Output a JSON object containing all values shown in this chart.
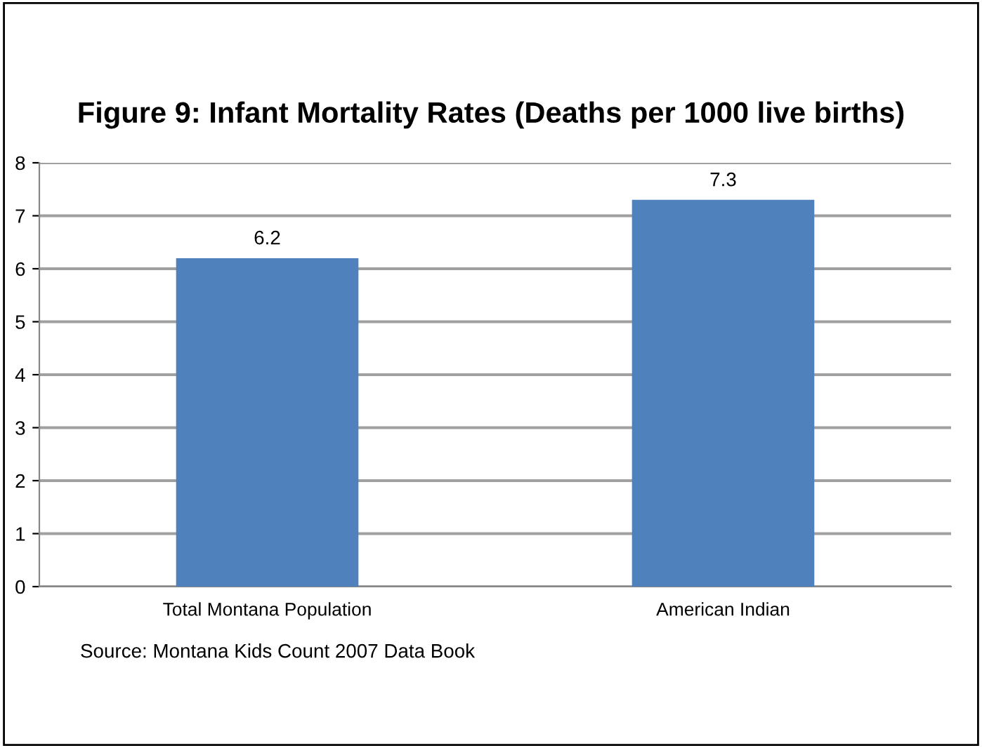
{
  "chart_data": {
    "type": "bar",
    "title": "Figure 9: Infant Mortality Rates (Deaths per 1000 live births)",
    "categories": [
      "Total Montana Population",
      "American Indian"
    ],
    "values": [
      6.2,
      7.3
    ],
    "color": "#4f81bd",
    "data_labels": true,
    "ylim": [
      0,
      8
    ],
    "yticks": [
      0,
      1,
      2,
      3,
      4,
      5,
      6,
      7,
      8
    ],
    "grid": "y",
    "legend": false,
    "annotations": [
      "Source: Montana Kids Count 2007 Data Book"
    ]
  }
}
